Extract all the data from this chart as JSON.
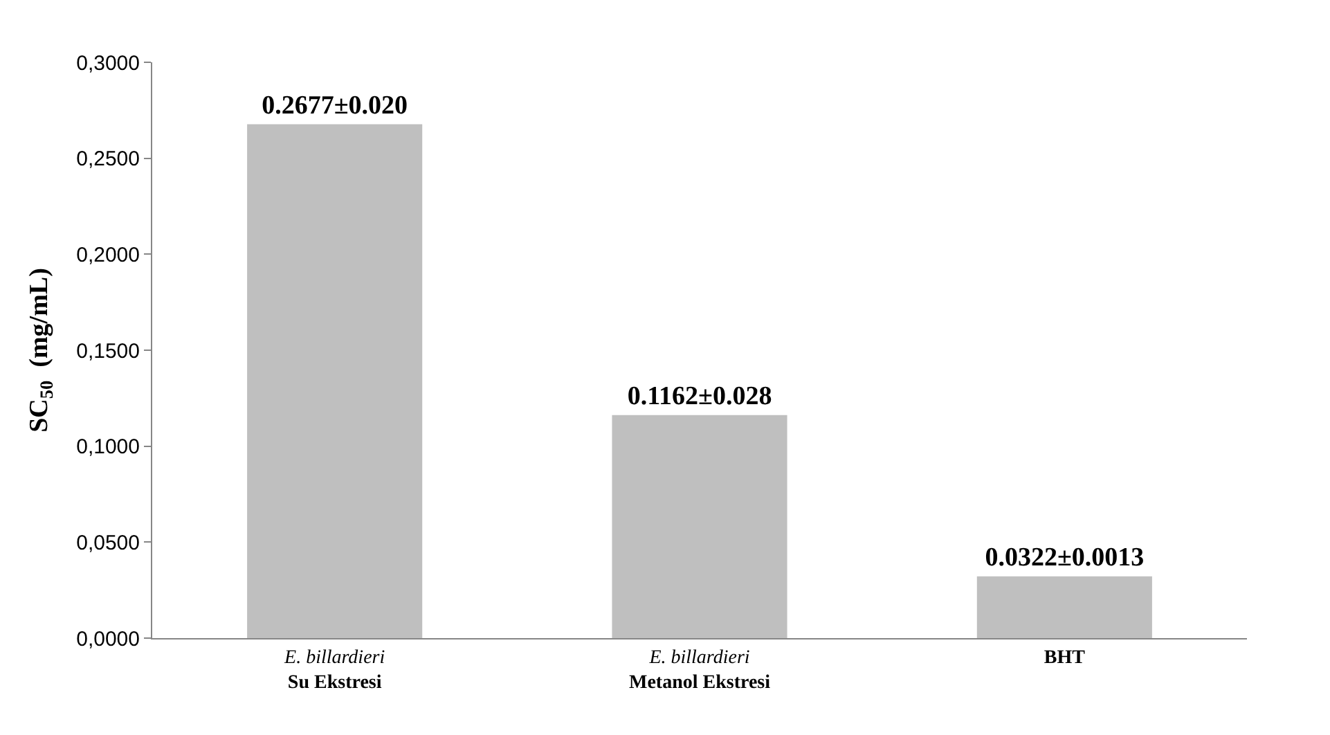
{
  "chart_data": {
    "type": "bar",
    "ylabel": "SC$_{50}$  (mg/mL)",
    "categories": [
      "E. billardieri\nSu Ekstresi",
      "E. billardieri\nMetanol Ekstresi",
      "BHT"
    ],
    "values": [
      0.2677,
      0.1162,
      0.0322
    ],
    "value_labels": [
      "0.2677±0.020",
      "0.1162±0.028",
      "0.0322±0.0013"
    ],
    "color": "#bfbfbf",
    "ylim": [
      0,
      0.3
    ],
    "yticks": [
      {
        "value": 0,
        "label": "0,0000"
      },
      {
        "value": 0.05,
        "label": "0,0500"
      },
      {
        "value": 0.1,
        "label": "0,1000"
      },
      {
        "value": 0.15,
        "label": "0,1500"
      },
      {
        "value": 0.2,
        "label": "0,2000"
      },
      {
        "value": 0.25,
        "label": "0,2500"
      },
      {
        "value": 0.3,
        "label": "0,3000"
      }
    ],
    "grid": false
  }
}
